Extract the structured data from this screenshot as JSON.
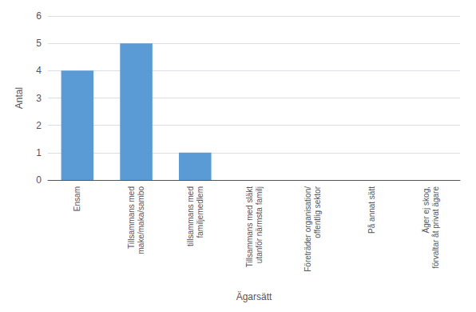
{
  "chart_data": {
    "type": "bar",
    "categories": [
      "Ensam",
      "Tillsammans med\nmake/maka/sambo",
      "tillsammans med\nfamiljemedlem",
      "Tillsammans med släkt\nutanför närmsta familj",
      "Företräder organisation/\noffentlig sektor",
      "På annat sätt",
      "Äger ej skog,\nförvaltar åt privat ägare"
    ],
    "values": [
      4,
      5,
      1,
      0,
      0,
      0,
      0
    ],
    "color": "#5b9bd5",
    "xlabel": "Ägarsätt",
    "ylabel": "Antal",
    "ylim": [
      0,
      6
    ],
    "yticks": [
      0,
      1,
      2,
      3,
      4,
      5,
      6
    ],
    "grid": true
  }
}
